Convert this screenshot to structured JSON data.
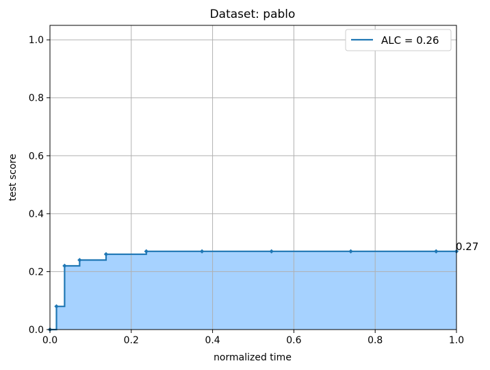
{
  "chart_data": {
    "type": "line",
    "title": "Dataset: pablo",
    "xlabel": "normalized time",
    "ylabel": "test score",
    "xlim": [
      0,
      1
    ],
    "ylim": [
      0,
      1.05
    ],
    "xticks": [
      0.0,
      0.2,
      0.4,
      0.6,
      0.8,
      1.0
    ],
    "yticks": [
      0.0,
      0.2,
      0.4,
      0.6,
      0.8,
      1.0
    ],
    "xtick_labels": [
      "0.0",
      "0.2",
      "0.4",
      "0.6",
      "0.8",
      "1.0"
    ],
    "ytick_labels": [
      "0.0",
      "0.2",
      "0.4",
      "0.6",
      "0.8",
      "1.0"
    ],
    "grid": true,
    "legend_position": "top-right",
    "step": "post",
    "filled_area": true,
    "series": [
      {
        "name": "ALC = 0.26",
        "color": "#1f77b4",
        "fill_color": "#a6d2ff",
        "x": [
          0.0,
          0.016,
          0.036,
          0.073,
          0.138,
          0.237,
          0.374,
          0.545,
          0.74,
          0.95,
          1.0
        ],
        "y": [
          0.0,
          0.08,
          0.22,
          0.24,
          0.26,
          0.27,
          0.27,
          0.27,
          0.27,
          0.27,
          0.27
        ]
      }
    ],
    "annotation": {
      "text": "0.27",
      "x": 1.0,
      "y": 0.27
    }
  }
}
